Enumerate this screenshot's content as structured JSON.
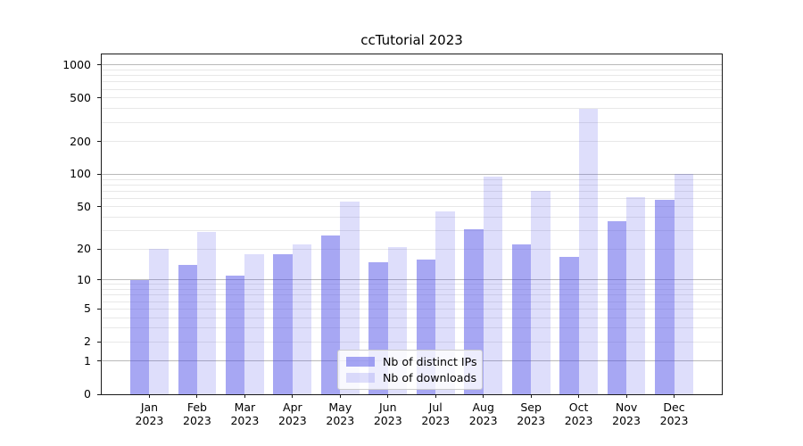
{
  "chart_data": {
    "type": "bar",
    "title": "ccTutorial 2023",
    "categories": [
      "Jan 2023",
      "Feb 2023",
      "Mar 2023",
      "Apr 2023",
      "May 2023",
      "Jun 2023",
      "Jul 2023",
      "Aug 2023",
      "Sep 2023",
      "Oct 2023",
      "Nov 2023",
      "Dec 2023"
    ],
    "series": [
      {
        "name": "Nb of distinct IPs",
        "values": [
          10,
          14,
          11,
          18,
          27,
          15,
          16,
          31,
          22,
          17,
          37,
          58
        ],
        "color": "rgba(80,80,232,0.50)"
      },
      {
        "name": "Nb of downloads",
        "values": [
          20,
          29,
          18,
          22,
          56,
          21,
          45,
          96,
          70,
          397,
          62,
          100
        ],
        "color": "rgba(80,80,232,0.19)"
      }
    ],
    "yscale": "log10(1+x)",
    "ylim": [
      0,
      1250
    ],
    "yticks": [
      0,
      1,
      2,
      5,
      10,
      20,
      50,
      100,
      200,
      500,
      1000
    ],
    "grid": "both",
    "grid_major_color": "#b9b9b9",
    "grid_minor_color": "#e8e8e8",
    "axis_color": "#1a1a1a",
    "legend_position": "lower center",
    "xlabel": "",
    "ylabel": ""
  }
}
